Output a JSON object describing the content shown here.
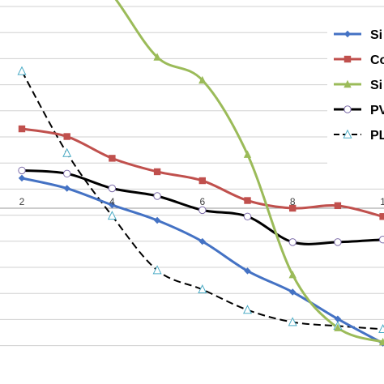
{
  "chart_data": {
    "type": "line",
    "title": "",
    "xlabel": "",
    "ylabel": "",
    "x_ticks": [
      "2",
      "4",
      "6",
      "8",
      "1"
    ],
    "grid": true,
    "legend_position": "right",
    "series": [
      {
        "name": "Si",
        "color": "#4472C4",
        "marker": "diamond",
        "dashed": false,
        "x": [
          2,
          3,
          4,
          5,
          6,
          7,
          8,
          9,
          10
        ],
        "y": [
          0.47,
          0.31,
          0.05,
          -0.19,
          -0.52,
          -0.98,
          -1.31,
          -1.73,
          -2.11
        ]
      },
      {
        "name": "Co",
        "color": "#C0504D",
        "marker": "square",
        "dashed": false,
        "x": [
          2,
          3,
          4,
          5,
          6,
          7,
          8,
          9,
          10
        ],
        "y": [
          1.24,
          1.12,
          0.78,
          0.57,
          0.43,
          0.12,
          0.0,
          0.04,
          -0.13
        ]
      },
      {
        "name": "Si",
        "color": "#9BBB59",
        "marker": "triangle",
        "dashed": false,
        "x": [
          2,
          3,
          4,
          5,
          6,
          7,
          8,
          9,
          10
        ],
        "y": [
          3.84,
          4.12,
          3.34,
          2.36,
          2.0,
          0.84,
          -1.04,
          -1.87,
          -2.09
        ]
      },
      {
        "name": "PV",
        "color": "#000000",
        "marker": "circle-open",
        "dashed": false,
        "x": [
          2,
          3,
          4,
          5,
          6,
          7,
          8,
          9,
          10
        ],
        "y": [
          0.59,
          0.54,
          0.31,
          0.19,
          -0.03,
          -0.13,
          -0.53,
          -0.53,
          -0.49
        ]
      },
      {
        "name": "PL",
        "color": "#000000",
        "marker": "triangle-open",
        "dashed": true,
        "x": [
          2,
          3,
          4,
          5,
          6,
          7,
          8,
          9,
          10
        ],
        "y": [
          2.14,
          0.86,
          -0.12,
          -0.97,
          -1.27,
          -1.59,
          -1.78,
          -1.84,
          -1.89
        ]
      }
    ],
    "legend": [
      "Si",
      "Co",
      "Si",
      "PV",
      "PL"
    ]
  }
}
